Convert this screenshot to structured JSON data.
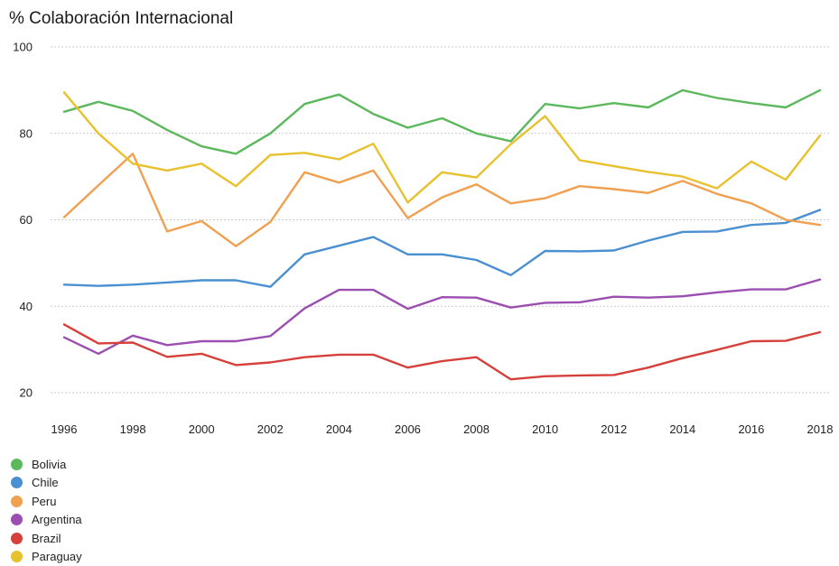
{
  "chart_data": {
    "type": "line",
    "title": "%  Colaboración Internacional",
    "xlabel": "",
    "ylabel": "",
    "x": [
      1996,
      1997,
      1998,
      1999,
      2000,
      2001,
      2002,
      2003,
      2004,
      2005,
      2006,
      2007,
      2008,
      2009,
      2010,
      2011,
      2012,
      2013,
      2014,
      2015,
      2016,
      2017,
      2018
    ],
    "x_ticks": [
      "1996",
      "1998",
      "2000",
      "2002",
      "2004",
      "2006",
      "2008",
      "2010",
      "2012",
      "2014",
      "2016",
      "2018"
    ],
    "y_ticks": [
      "100",
      "80",
      "60",
      "40",
      "20"
    ],
    "ylim": [
      20,
      100
    ],
    "grid": true,
    "legend_position": "bottom-left",
    "series": [
      {
        "name": "Bolivia",
        "color": "#5cb85c",
        "values": [
          85,
          87.3,
          85.2,
          80.8,
          77,
          75.3,
          80,
          86.8,
          89,
          84.5,
          81.3,
          83.5,
          80,
          78.2,
          86.8,
          85.8,
          87,
          86,
          90,
          88.2,
          87,
          86,
          90
        ]
      },
      {
        "name": "Chile",
        "color": "#4a8fd0",
        "values": [
          45,
          44.7,
          45,
          45.5,
          46,
          46,
          44.5,
          52,
          54,
          56,
          52,
          52,
          50.7,
          47.2,
          52.8,
          52.7,
          52.9,
          55.2,
          57.2,
          57.3,
          58.8,
          59.3,
          62.3
        ]
      },
      {
        "name": "Peru",
        "color": "#f0a050",
        "values": [
          60.6,
          68,
          75.3,
          57.3,
          59.7,
          53.9,
          59.5,
          71,
          68.6,
          71.4,
          60.4,
          65.2,
          68.2,
          63.8,
          65,
          67.8,
          67.1,
          66.2,
          69,
          66,
          63.8,
          60,
          58.8
        ]
      },
      {
        "name": "Argentina",
        "color": "#9b4fb0",
        "values": [
          32.8,
          29,
          33.2,
          31,
          31.9,
          31.9,
          33.1,
          39.5,
          43.8,
          43.8,
          39.4,
          42.1,
          42,
          39.7,
          40.8,
          40.9,
          42.2,
          42,
          42.3,
          43.2,
          43.9,
          43.9,
          46.2
        ]
      },
      {
        "name": "Brazil",
        "color": "#d6403a",
        "values": [
          35.8,
          31.4,
          31.6,
          28.3,
          29,
          26.4,
          27,
          28.2,
          28.8,
          28.8,
          25.8,
          27.3,
          28.2,
          23.1,
          23.8,
          24,
          24.1,
          25.8,
          28,
          29.9,
          31.9,
          32,
          34
        ]
      },
      {
        "name": "Paraguay",
        "color": "#e8c12e",
        "values": [
          89.5,
          80,
          73,
          71.4,
          73,
          67.8,
          75,
          75.5,
          74,
          77.6,
          64,
          71,
          69.8,
          77.5,
          84,
          73.8,
          72.4,
          71.1,
          70,
          67.3,
          73.5,
          69.3,
          79.5
        ]
      }
    ]
  }
}
